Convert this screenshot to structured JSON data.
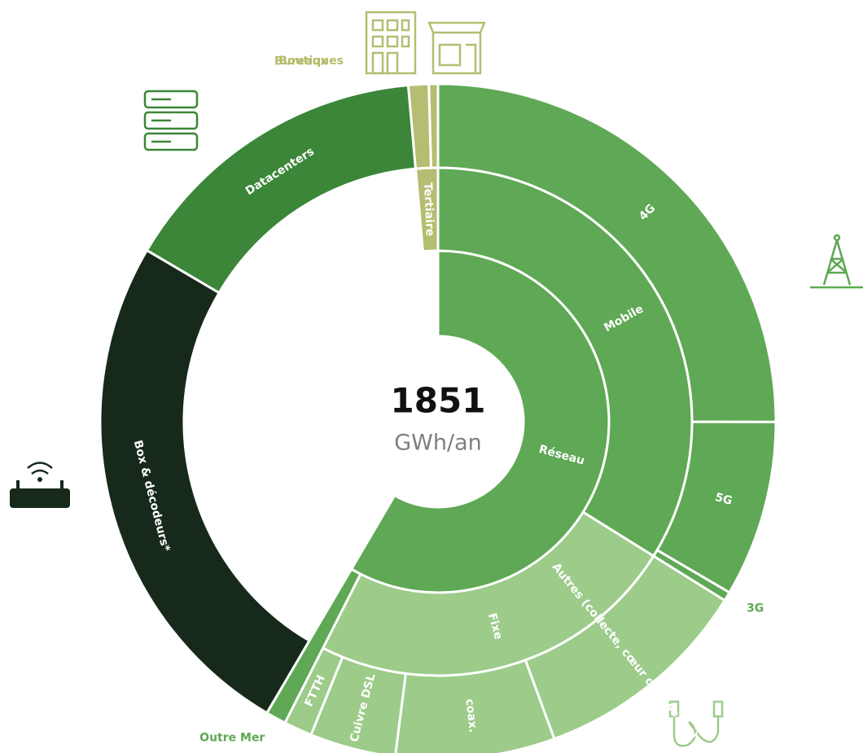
{
  "chart_data": {
    "type": "sunburst",
    "total": 1851,
    "unit": "GWh/an",
    "nodes": [
      {
        "name": "Réseau",
        "value": 1082,
        "color": "#5fa855",
        "children": [
          {
            "name": "Mobile",
            "value": 627,
            "color": "#5fa855",
            "children": [
              {
                "name": "4G",
                "value": 463,
                "color": "#5fa855"
              },
              {
                "name": "5G",
                "value": 156,
                "color": "#5fa855"
              },
              {
                "name": "3G",
                "value": 8,
                "color": "#5fa855"
              }
            ]
          },
          {
            "name": "Fixe",
            "value": 437,
            "color": "#9ccb8a",
            "children": [
              {
                "name": "Autres (collecte, cœur de réseaux)",
                "value": 195,
                "color": "#9ccb8a"
              },
              {
                "name": "coax.",
                "value": 141,
                "color": "#9ccb8a"
              },
              {
                "name": "Cuivre DSL",
                "value": 76,
                "color": "#9ccb8a"
              },
              {
                "name": "FTTH",
                "value": 25,
                "color": "#9ccb8a"
              }
            ]
          },
          {
            "name": "Outre Mer",
            "value": 18,
            "color": "#5fa855"
          }
        ]
      },
      {
        "name": "Box & décodeurs*",
        "value": 463,
        "color": "#17291b"
      },
      {
        "name": "Datacenters",
        "value": 280,
        "color": "#3b8638"
      },
      {
        "name": "Tertiaire",
        "value": 26,
        "color": "#b5bd72",
        "children": [
          {
            "name": "Bureaux",
            "value": 18,
            "color": "#b5bd72"
          },
          {
            "name": "Boutiques",
            "value": 8,
            "color": "#b5bd72"
          }
        ]
      }
    ]
  }
}
